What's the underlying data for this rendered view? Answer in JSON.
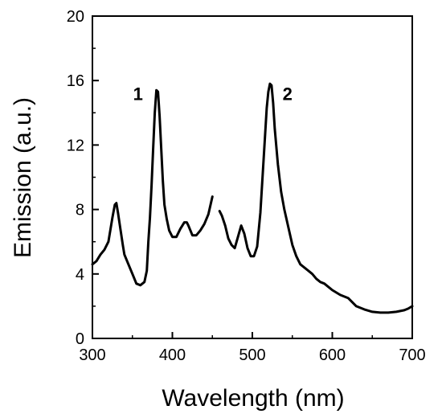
{
  "chart_data": {
    "type": "line",
    "title": "",
    "xlabel": "Wavelength (nm)",
    "ylabel": "Emission (a.u.)",
    "xlim": [
      300,
      700
    ],
    "ylim": [
      0,
      20
    ],
    "x_ticks": [
      300,
      400,
      500,
      600,
      700
    ],
    "x_tick_labels": [
      "300",
      "400",
      "500",
      "600",
      "700"
    ],
    "y_ticks": [
      0,
      4,
      8,
      12,
      16,
      20
    ],
    "y_tick_labels": [
      "0",
      "4",
      "8",
      "12",
      "16",
      "20"
    ],
    "grid": false,
    "line_color": "#000000",
    "annotations": [
      {
        "text": "1",
        "x": 357,
        "y": 14.8
      },
      {
        "text": "2",
        "x": 544,
        "y": 14.8
      }
    ],
    "series": [
      {
        "segments": [
          {
            "x": [
              300,
              305,
              310,
              315,
              320,
              325,
              328,
              330,
              332,
              335,
              338,
              340,
              345,
              350,
              355,
              360,
              365,
              368,
              370,
              372,
              374,
              376,
              378,
              380,
              382,
              384,
              386,
              388,
              390,
              393,
              396,
              400,
              405,
              410,
              415,
              418,
              420,
              425,
              430,
              435,
              440,
              445,
              450
            ],
            "y": [
              4.6,
              4.8,
              5.2,
              5.5,
              6.0,
              7.5,
              8.3,
              8.4,
              7.8,
              6.8,
              5.8,
              5.2,
              4.6,
              4.0,
              3.4,
              3.3,
              3.5,
              4.2,
              6.0,
              7.5,
              9.5,
              11.8,
              14.0,
              15.4,
              15.3,
              13.8,
              11.8,
              9.8,
              8.3,
              7.4,
              6.7,
              6.3,
              6.3,
              6.8,
              7.2,
              7.2,
              7.0,
              6.4,
              6.4,
              6.7,
              7.1,
              7.7,
              8.8
            ]
          },
          {
            "x": [
              459,
              462,
              466,
              470,
              474,
              478,
              482,
              486,
              490,
              494,
              498,
              502,
              506,
              510,
              514,
              518,
              520,
              522,
              524,
              526,
              528,
              532,
              536,
              540,
              545,
              550,
              555,
              560,
              565,
              570,
              575,
              580,
              585,
              590,
              595,
              600,
              610,
              620,
              630,
              640,
              650,
              660,
              670,
              680,
              690,
              695,
              700
            ],
            "y": [
              7.9,
              7.6,
              7.0,
              6.2,
              5.8,
              5.6,
              6.3,
              7.0,
              6.5,
              5.6,
              5.1,
              5.1,
              5.7,
              7.8,
              11.0,
              14.3,
              15.3,
              15.8,
              15.7,
              14.6,
              13.0,
              10.8,
              9.1,
              8.0,
              6.9,
              5.8,
              5.1,
              4.6,
              4.4,
              4.2,
              4.0,
              3.7,
              3.5,
              3.4,
              3.2,
              3.0,
              2.7,
              2.5,
              2.0,
              1.8,
              1.65,
              1.6,
              1.6,
              1.65,
              1.75,
              1.85,
              2.0
            ]
          }
        ]
      }
    ]
  }
}
